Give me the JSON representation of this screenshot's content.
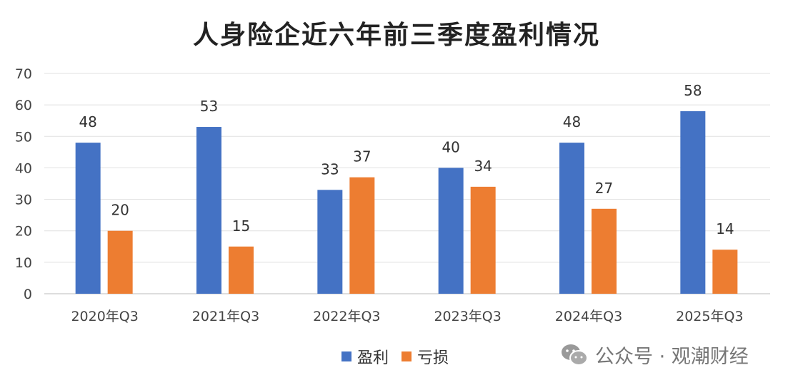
{
  "chart_data": {
    "type": "bar",
    "title": "人身险企近六年前三季度盈利情况",
    "categories": [
      "2020年Q3",
      "2021年Q3",
      "2022年Q3",
      "2023年Q3",
      "2024年Q3",
      "2025年Q3"
    ],
    "series": [
      {
        "name": "盈利",
        "color": "#4472C4",
        "values": [
          48,
          53,
          33,
          40,
          48,
          58
        ]
      },
      {
        "name": "亏损",
        "color": "#ED7D31",
        "values": [
          20,
          15,
          37,
          34,
          27,
          14
        ]
      }
    ],
    "ylim": [
      0,
      70
    ],
    "yticks": [
      0,
      10,
      20,
      30,
      40,
      50,
      60,
      70
    ],
    "grid": true,
    "legend": "bottom",
    "xlabel": "",
    "ylabel": ""
  },
  "watermark": {
    "icon": "wechat-icon",
    "text": "公众号 · 观潮财经"
  }
}
